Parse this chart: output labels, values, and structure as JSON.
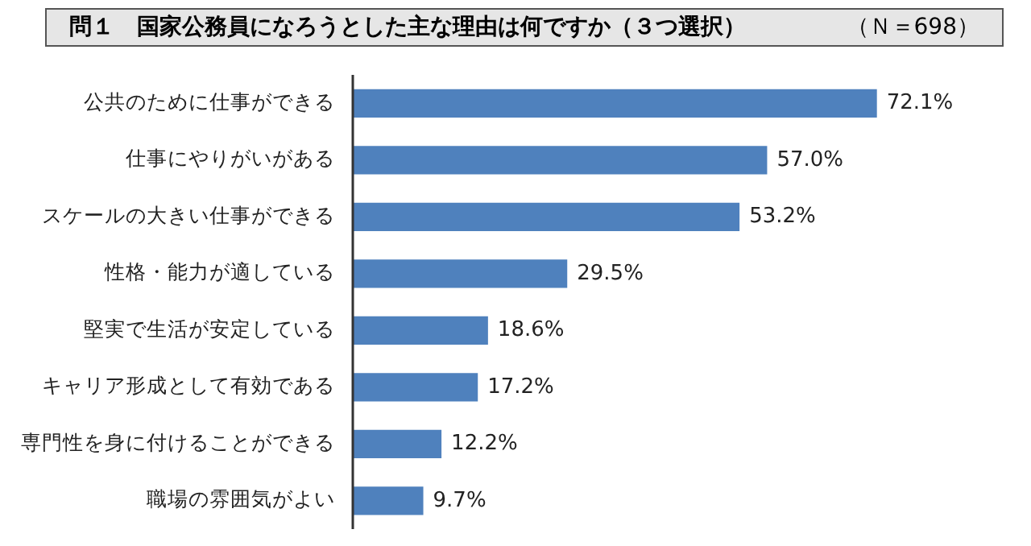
{
  "chart_data": {
    "type": "bar",
    "orientation": "horizontal",
    "title": "問１　国家公務員になろうとした主な理由は何ですか（３つ選択）",
    "subtitle": "（Ｎ＝698）",
    "categories": [
      "公共のために仕事ができる",
      "仕事にやりがいがある",
      "スケールの大きい仕事ができる",
      "性格・能力が適している",
      "堅実で生活が安定している",
      "キャリア形成として有効である",
      "専門性を身に付けることができる",
      "職場の雰囲気がよい"
    ],
    "values": [
      72.1,
      57.0,
      53.2,
      29.5,
      18.6,
      17.2,
      12.2,
      9.7
    ],
    "value_labels": [
      "72.1%",
      "57.0%",
      "53.2%",
      "29.5%",
      "18.6%",
      "17.2%",
      "12.2%",
      "9.7%"
    ],
    "color": "#4f81bd"
  }
}
